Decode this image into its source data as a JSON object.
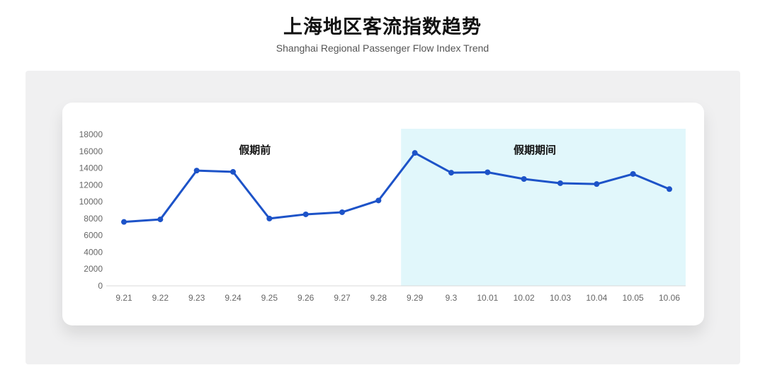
{
  "header": {
    "title": "上海地区客流指数趋势",
    "subtitle": "Shanghai Regional Passenger Flow Index Trend"
  },
  "chart_data": {
    "type": "line",
    "title": "上海地区客流指数趋势",
    "subtitle": "Shanghai Regional Passenger Flow Index Trend",
    "categories": [
      "9.21",
      "9.22",
      "9.23",
      "9.24",
      "9.25",
      "9.26",
      "9.27",
      "9.28",
      "9.29",
      "9.3",
      "10.01",
      "10.02",
      "10.03",
      "10.04",
      "10.05",
      "10.06"
    ],
    "values": [
      7600,
      7900,
      13700,
      13550,
      8000,
      8500,
      8750,
      10150,
      15800,
      13450,
      13500,
      12700,
      12200,
      12100,
      13300,
      11500
    ],
    "xlabel": "",
    "ylabel": "",
    "ylim": [
      0,
      18000
    ],
    "ytick_step": 2000,
    "grid": false,
    "legend": "none",
    "line_color": "#1d53c8",
    "marker": "circle",
    "annotations": [
      {
        "label": "假期前",
        "x_index": 3.6
      },
      {
        "label": "假期期间",
        "x_index": 11.3
      }
    ],
    "shaded_region": {
      "meaning": "假期期间",
      "from_category": "9.29",
      "to_category": "10.06",
      "start_x_index": 7.62,
      "extends_to": "plot-right-edge",
      "color": "#e1f7fb"
    }
  },
  "colors": {
    "page_bg": "#ffffff",
    "panel_bg": "#f0f0f1",
    "card_bg": "#ffffff",
    "line": "#1d53c8",
    "region": "#e1f7fb",
    "axis_line": "#d8d8d8",
    "tick_text": "#666666",
    "annotation_text": "#111111"
  }
}
